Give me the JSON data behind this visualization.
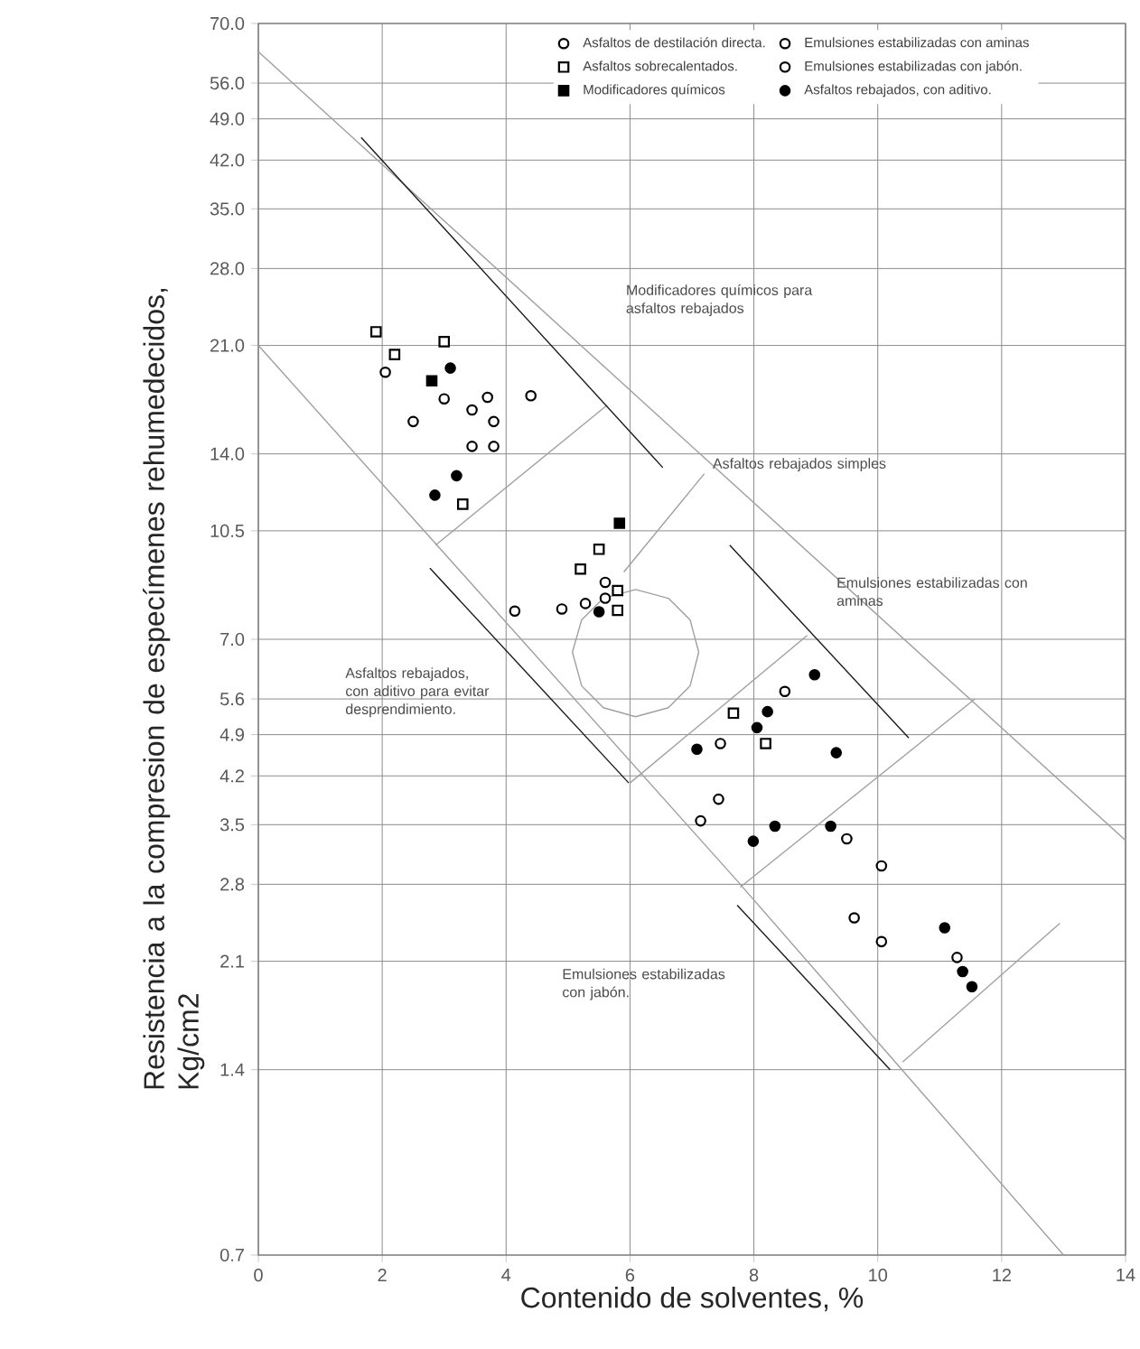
{
  "chart_data": {
    "type": "scatter",
    "xlabel": "Contenido de solventes, %",
    "ylabel": "Resistencia a la compresion de especímenes rehumedecidos, Kg/cm2",
    "xlim": [
      0,
      14
    ],
    "xticks": [
      0,
      2,
      4,
      6,
      8,
      10,
      12,
      14
    ],
    "ylim": [
      0.7,
      70
    ],
    "log": "y",
    "yticks": [
      {
        "value": 0.7,
        "label": "0.7"
      },
      {
        "value": 1.4,
        "label": "1.4"
      },
      {
        "value": 2.1,
        "label": "2.1"
      },
      {
        "value": 2.8,
        "label": "2.8"
      },
      {
        "value": 3.5,
        "label": "3.5"
      },
      {
        "value": 4.2,
        "label": "4.2"
      },
      {
        "value": 4.9,
        "label": "4.9"
      },
      {
        "value": 5.6,
        "label": "5.6"
      },
      {
        "value": 7,
        "label": "7.0"
      },
      {
        "value": 10.5,
        "label": "10.5"
      },
      {
        "value": 14,
        "label": "14.0"
      },
      {
        "value": 21,
        "label": "21.0"
      },
      {
        "value": 28,
        "label": "28.0"
      },
      {
        "value": 35,
        "label": "35.0"
      },
      {
        "value": 42,
        "label": "42.0"
      },
      {
        "value": 49,
        "label": "49.0"
      },
      {
        "value": 56,
        "label": "56.0"
      },
      {
        "value": 70,
        "label": "70.0"
      }
    ],
    "grid": true,
    "legend": "top",
    "series": [
      {
        "name": "Asfaltos de destilación directa.",
        "marker": "circle",
        "color": "#ffffff",
        "x": [
          2.05,
          3.0,
          2.5,
          3.7,
          3.45,
          3.8,
          4.4,
          3.45,
          3.8,
          5.6,
          5.28,
          4.9,
          5.6,
          4.14
        ],
        "values": [
          19.0,
          17.2,
          15.8,
          17.3,
          16.5,
          15.8,
          17.4,
          14.4,
          14.4,
          8.66,
          8.0,
          7.84,
          8.16,
          7.78
        ]
      },
      {
        "name": "Emulsiones estabilizadas con aminas",
        "marker": "circle",
        "color": "#ffffff",
        "x": [
          8.5,
          7.46,
          7.43,
          7.14
        ],
        "values": [
          5.76,
          4.74,
          3.85,
          3.55
        ]
      },
      {
        "name": "Asfaltos sobrecalentados.",
        "marker": "square",
        "color": "#ffffff",
        "x": [
          1.9,
          2.2,
          3.0,
          3.3,
          5.5,
          5.2,
          5.8,
          5.8,
          7.67,
          8.19
        ],
        "values": [
          22.1,
          20.3,
          21.3,
          11.6,
          9.8,
          9.1,
          8.4,
          7.8,
          5.31,
          4.74
        ]
      },
      {
        "name": "Emulsiones estabilizadas con jabón.",
        "marker": "circle",
        "color": "#ffffff",
        "x": [
          9.5,
          10.06,
          9.62,
          10.06,
          11.28
        ],
        "values": [
          3.32,
          3.0,
          2.47,
          2.26,
          2.13
        ]
      },
      {
        "name": "Modificadores químicos",
        "marker": "square",
        "color": "#000000",
        "x": [
          2.8,
          5.83
        ],
        "values": [
          18.4,
          10.8
        ]
      },
      {
        "name": "Asfaltos rebajados, con aditivo.",
        "marker": "circle",
        "color": "#000000",
        "x": [
          3.1,
          3.2,
          2.85,
          5.5,
          8.98,
          8.22,
          8.05,
          7.08,
          9.33,
          7.99,
          8.34,
          9.24,
          11.08,
          11.37,
          11.52
        ],
        "values": [
          19.3,
          12.9,
          12.0,
          7.76,
          6.13,
          5.34,
          5.03,
          4.64,
          4.58,
          3.29,
          3.48,
          3.48,
          2.38,
          2.02,
          1.91
        ]
      },
      {
        "type": "line",
        "color": "#a0a0a0",
        "x": [
          0,
          6.9,
          14
        ],
        "values": [
          63,
          14.7,
          3.3
        ]
      },
      {
        "type": "line",
        "color": "#a0a0a0",
        "x": [
          0,
          7.7,
          13
        ],
        "values": [
          21,
          2.86,
          0.7
        ]
      },
      {
        "type": "line",
        "color": "#a0a0a0",
        "x": [
          2.86,
          5.63
        ],
        "values": [
          9.95,
          16.8
        ]
      },
      {
        "type": "line",
        "color": "#a0a0a0",
        "x": [
          6.0,
          8.86
        ],
        "values": [
          4.09,
          7.1
        ]
      },
      {
        "type": "line",
        "color": "#a0a0a0",
        "x": [
          7.78,
          11.57
        ],
        "values": [
          2.77,
          5.6
        ]
      },
      {
        "type": "line",
        "color": "#a0a0a0",
        "x": [
          10.4,
          12.94
        ],
        "values": [
          1.44,
          2.42
        ]
      },
      {
        "type": "line",
        "color": "#a0a0a0",
        "x": [
          7.2,
          5.9
        ],
        "values": [
          13.0,
          9.0
        ]
      },
      {
        "type": "line",
        "color": "#a0a0a0",
        "x": [
          7.11,
          6.97,
          6.62,
          6.09,
          5.57,
          5.22,
          5.07
        ],
        "values": [
          6.67,
          7.53,
          8.16,
          8.43,
          8.16,
          7.53,
          6.67
        ]
      },
      {
        "type": "line",
        "color": "#a0a0a0",
        "x": [
          5.07,
          5.22,
          5.57,
          6.09,
          6.62,
          6.97,
          7.11
        ],
        "values": [
          6.67,
          5.88,
          5.42,
          5.24,
          5.42,
          5.88,
          6.67
        ]
      },
      {
        "type": "line",
        "color": "#1a1a1a",
        "x": [
          1.66,
          6.53
        ],
        "values": [
          45.7,
          13.3
        ]
      },
      {
        "type": "line",
        "color": "#1a1a1a",
        "x": [
          2.77,
          5.98
        ],
        "values": [
          9.13,
          4.09
        ]
      },
      {
        "type": "line",
        "color": "#1a1a1a",
        "x": [
          7.61,
          10.5
        ],
        "values": [
          9.95,
          4.84
        ]
      },
      {
        "type": "line",
        "color": "#1a1a1a",
        "x": [
          7.73,
          10.2
        ],
        "values": [
          2.59,
          1.4
        ]
      }
    ],
    "annotations": [
      "Modificadores químicos para asfaltos rebajados",
      "Asfaltos rebajados simples",
      {
        "text": "Emulsiones estabilizadas con aminas",
        "x": 9.3,
        "y": 8.9
      },
      "Asfaltos rebajados, con aditivo para evitar desprendimiento.",
      "Emulsiones estabilizadas con jabón."
    ]
  }
}
